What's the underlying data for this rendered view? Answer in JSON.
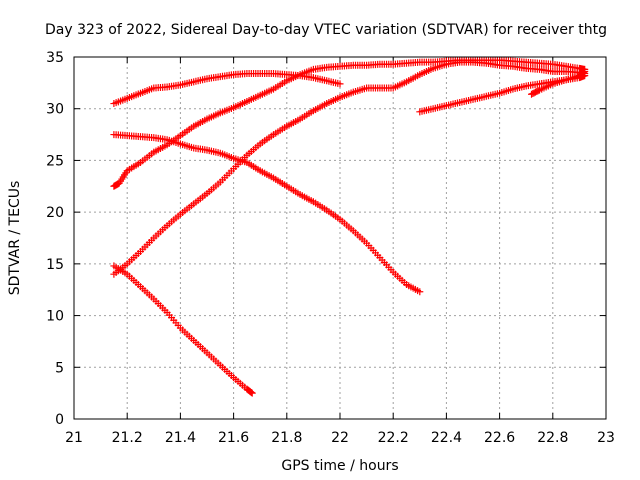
{
  "chart_data": {
    "type": "scatter",
    "title": "Day 323 of 2022, Sidereal Day-to-day VTEC variation (SDTVAR) for receiver thtg",
    "xlabel": "GPS time / hours",
    "ylabel": "SDTVAR / TECUs",
    "xlim": [
      21,
      23
    ],
    "ylim": [
      0,
      35
    ],
    "xticks": [
      21,
      21.2,
      21.4,
      21.6,
      21.8,
      22,
      22.2,
      22.4,
      22.6,
      22.8,
      23
    ],
    "xtick_labels": [
      "21",
      "21.2",
      "21.4",
      "21.6",
      "21.8",
      "22",
      "22.2",
      "22.4",
      "22.6",
      "22.8",
      "23"
    ],
    "yticks": [
      0,
      5,
      10,
      15,
      20,
      25,
      30,
      35
    ],
    "ytick_labels": [
      "0",
      "5",
      "10",
      "15",
      "20",
      "25",
      "30",
      "35"
    ],
    "grid": true,
    "marker": "+",
    "color": "#ff0000",
    "series": [
      {
        "name": "arc-1",
        "x": [
          21.15,
          21.2,
          21.25,
          21.3,
          21.35,
          21.4,
          21.45,
          21.5,
          21.55,
          21.6,
          21.65,
          21.7,
          21.75,
          21.8,
          21.85,
          21.9,
          21.95,
          22.0
        ],
        "y": [
          30.5,
          31.0,
          31.5,
          32.0,
          32.1,
          32.3,
          32.6,
          32.9,
          33.1,
          33.3,
          33.4,
          33.4,
          33.4,
          33.3,
          33.2,
          33.0,
          32.7,
          32.4
        ]
      },
      {
        "name": "arc-2",
        "x": [
          21.15,
          21.2,
          21.25,
          21.3,
          21.35,
          21.4,
          21.45,
          21.5,
          21.55,
          21.6,
          21.65,
          21.7,
          21.75,
          21.8,
          21.85,
          21.9,
          21.95,
          22.0,
          22.05,
          22.1,
          22.15,
          22.2,
          22.25,
          22.3
        ],
        "y": [
          27.5,
          27.4,
          27.3,
          27.2,
          27.0,
          26.6,
          26.2,
          26.0,
          25.7,
          25.2,
          24.8,
          24.0,
          23.3,
          22.5,
          21.7,
          21.0,
          20.2,
          19.3,
          18.2,
          17.0,
          15.6,
          14.2,
          13.0,
          12.3
        ]
      },
      {
        "name": "arc-3",
        "x": [
          21.15,
          21.17,
          21.2,
          21.25,
          21.3,
          21.35,
          21.4,
          21.45,
          21.5,
          21.55,
          21.6,
          21.65,
          21.7,
          21.75,
          21.8,
          21.85,
          21.9,
          21.95,
          22.0,
          22.05,
          22.1,
          22.15,
          22.2,
          22.25,
          22.3,
          22.35,
          22.4,
          22.45,
          22.5,
          22.55,
          22.6,
          22.65,
          22.7,
          22.75,
          22.8,
          22.85,
          22.9,
          22.92
        ],
        "y": [
          22.5,
          22.8,
          24.0,
          24.8,
          25.8,
          26.5,
          27.4,
          28.3,
          29.0,
          29.6,
          30.1,
          30.7,
          31.3,
          31.9,
          32.7,
          33.3,
          33.8,
          34.0,
          34.1,
          34.2,
          34.2,
          34.3,
          34.3,
          34.4,
          34.5,
          34.5,
          34.6,
          34.7,
          34.7,
          34.7,
          34.7,
          34.6,
          34.5,
          34.4,
          34.3,
          34.1,
          33.9,
          33.8
        ]
      },
      {
        "name": "arc-4",
        "x": [
          21.15,
          21.2,
          21.25,
          21.3,
          21.35,
          21.4,
          21.45,
          21.5,
          21.55,
          21.6,
          21.65,
          21.7,
          21.75,
          21.8,
          21.85,
          21.9,
          21.95,
          22.0,
          22.05,
          22.1,
          22.15,
          22.2,
          22.25,
          22.3,
          22.35,
          22.4,
          22.45,
          22.5,
          22.55,
          22.6,
          22.65,
          22.7,
          22.75,
          22.8,
          22.85,
          22.9,
          22.92
        ],
        "y": [
          14.0,
          15.0,
          16.2,
          17.5,
          18.7,
          19.8,
          20.8,
          21.8,
          22.9,
          24.2,
          25.5,
          26.6,
          27.5,
          28.3,
          29.0,
          29.8,
          30.5,
          31.1,
          31.6,
          32.0,
          32.0,
          32.0,
          32.6,
          33.3,
          33.9,
          34.3,
          34.5,
          34.5,
          34.4,
          34.2,
          34.1,
          33.9,
          33.8,
          33.6,
          33.6,
          33.5,
          33.4
        ]
      },
      {
        "name": "arc-5",
        "x": [
          21.15,
          21.2,
          21.25,
          21.3,
          21.35,
          21.4,
          21.45,
          21.5,
          21.55,
          21.6,
          21.65,
          21.67
        ],
        "y": [
          14.8,
          14.0,
          12.8,
          11.6,
          10.3,
          8.8,
          7.6,
          6.4,
          5.2,
          4.0,
          2.9,
          2.5
        ]
      },
      {
        "name": "arc-6",
        "x": [
          22.3,
          22.35,
          22.4,
          22.45,
          22.5,
          22.55,
          22.6,
          22.65,
          22.7,
          22.75,
          22.8,
          22.85,
          22.9,
          22.92
        ],
        "y": [
          29.7,
          30.0,
          30.3,
          30.6,
          30.9,
          31.2,
          31.5,
          31.9,
          32.2,
          32.4,
          32.6,
          32.8,
          33.0,
          33.2
        ]
      },
      {
        "name": "arc-7",
        "x": [
          22.72,
          22.75,
          22.8,
          22.85,
          22.9,
          22.92
        ],
        "y": [
          31.4,
          31.8,
          32.4,
          32.8,
          33.2,
          33.6
        ]
      }
    ]
  }
}
